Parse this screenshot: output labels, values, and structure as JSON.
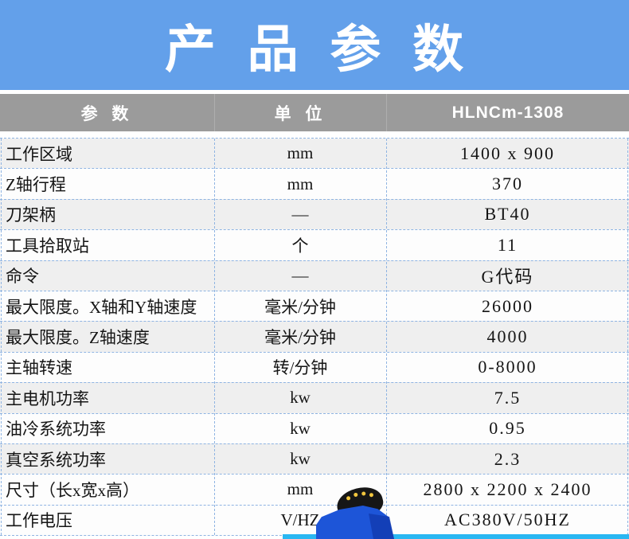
{
  "banner": {
    "title": "产 品 参 数"
  },
  "table": {
    "header": {
      "param": "参 数",
      "unit": "单 位",
      "model": "HLNCm-1308"
    },
    "rows": [
      {
        "param": "工作区域",
        "unit": "mm",
        "value": "1400 x 900"
      },
      {
        "param": "Z轴行程",
        "unit": "mm",
        "value": "370"
      },
      {
        "param": "刀架柄",
        "unit": "—",
        "value": "BT40"
      },
      {
        "param": "工具拾取站",
        "unit": "个",
        "value": "11"
      },
      {
        "param": "命令",
        "unit": "—",
        "value": "G代码"
      },
      {
        "param": "最大限度。X轴和Y轴速度",
        "unit": "毫米/分钟",
        "value": "26000"
      },
      {
        "param": "最大限度。Z轴速度",
        "unit": "毫米/分钟",
        "value": "4000"
      },
      {
        "param": "主轴转速",
        "unit": "转/分钟",
        "value": "0-8000"
      },
      {
        "param": "主电机功率",
        "unit": "kw",
        "value": "7.5"
      },
      {
        "param": "油冷系统功率",
        "unit": "kw",
        "value": "0.95"
      },
      {
        "param": "真空系统功率",
        "unit": "kw",
        "value": "2.3"
      },
      {
        "param": "尺寸（长x宽x高）",
        "unit": "mm",
        "value": "2800 x 2200 x 2400"
      },
      {
        "param": "工作电压",
        "unit": "V/HZ",
        "value": "AC380V/50HZ"
      }
    ]
  },
  "colors": {
    "banner_blue": "#63a0ea",
    "header_gray": "#9b9b9b",
    "row_shade": "#efefef",
    "dashed_border_blue": "#8fb4e2",
    "bottom_strip_cyan": "#29b7f2",
    "machine_blue": "#1d55d8"
  },
  "icons": {
    "machine_image": "cnc-machine-photo"
  }
}
